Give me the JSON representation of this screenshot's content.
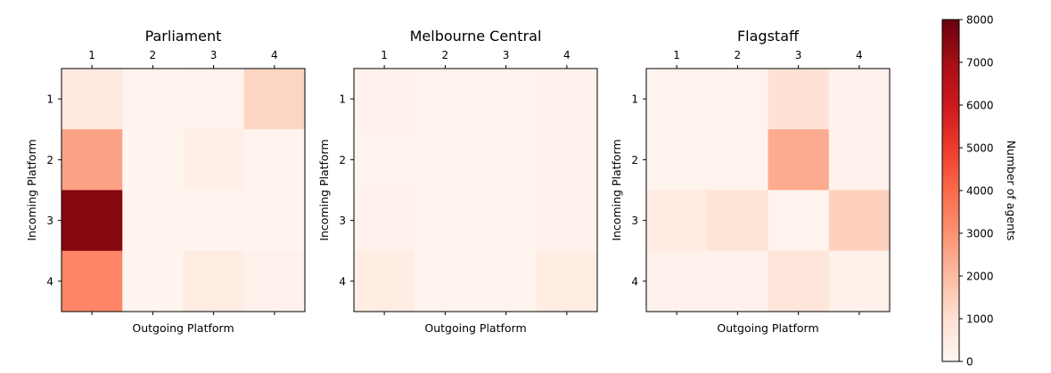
{
  "chart_data": [
    {
      "type": "heatmap",
      "title": "Parliament",
      "xlabel": "Outgoing Platform",
      "ylabel": "Incoming Platform",
      "x_categories": [
        "1",
        "2",
        "3",
        "4"
      ],
      "y_categories": [
        "1",
        "2",
        "3",
        "4"
      ],
      "x_tick_position": "top",
      "values": [
        [
          550,
          80,
          90,
          1300
        ],
        [
          2600,
          60,
          300,
          60
        ],
        [
          7500,
          60,
          60,
          60
        ],
        [
          3300,
          60,
          420,
          120
        ]
      ]
    },
    {
      "type": "heatmap",
      "title": "Melbourne Central",
      "xlabel": "Outgoing Platform",
      "ylabel": "Incoming Platform",
      "x_categories": [
        "1",
        "2",
        "3",
        "4"
      ],
      "y_categories": [
        "1",
        "2",
        "3",
        "4"
      ],
      "x_tick_position": "top",
      "values": [
        [
          120,
          100,
          100,
          120
        ],
        [
          100,
          100,
          100,
          120
        ],
        [
          150,
          100,
          100,
          120
        ],
        [
          400,
          100,
          100,
          420
        ]
      ]
    },
    {
      "type": "heatmap",
      "title": "Flagstaff",
      "xlabel": "Outgoing Platform",
      "ylabel": "Incoming Platform",
      "x_categories": [
        "1",
        "2",
        "3",
        "4"
      ],
      "y_categories": [
        "1",
        "2",
        "3",
        "4"
      ],
      "x_tick_position": "top",
      "values": [
        [
          100,
          100,
          900,
          150
        ],
        [
          80,
          80,
          2400,
          150
        ],
        [
          500,
          850,
          100,
          1400
        ],
        [
          150,
          150,
          700,
          200
        ]
      ]
    }
  ],
  "colorbar": {
    "label": "Number of agents",
    "min": 0,
    "max": 8000,
    "ticks": [
      "0",
      "1000",
      "2000",
      "3000",
      "4000",
      "5000",
      "6000",
      "7000",
      "8000"
    ],
    "colormap": "Reds",
    "colors": [
      "#fff5f0",
      "#fee0d2",
      "#fcbba1",
      "#fc9272",
      "#fb6a4a",
      "#ef3b2c",
      "#cb181d",
      "#a50f15",
      "#67000d"
    ]
  }
}
